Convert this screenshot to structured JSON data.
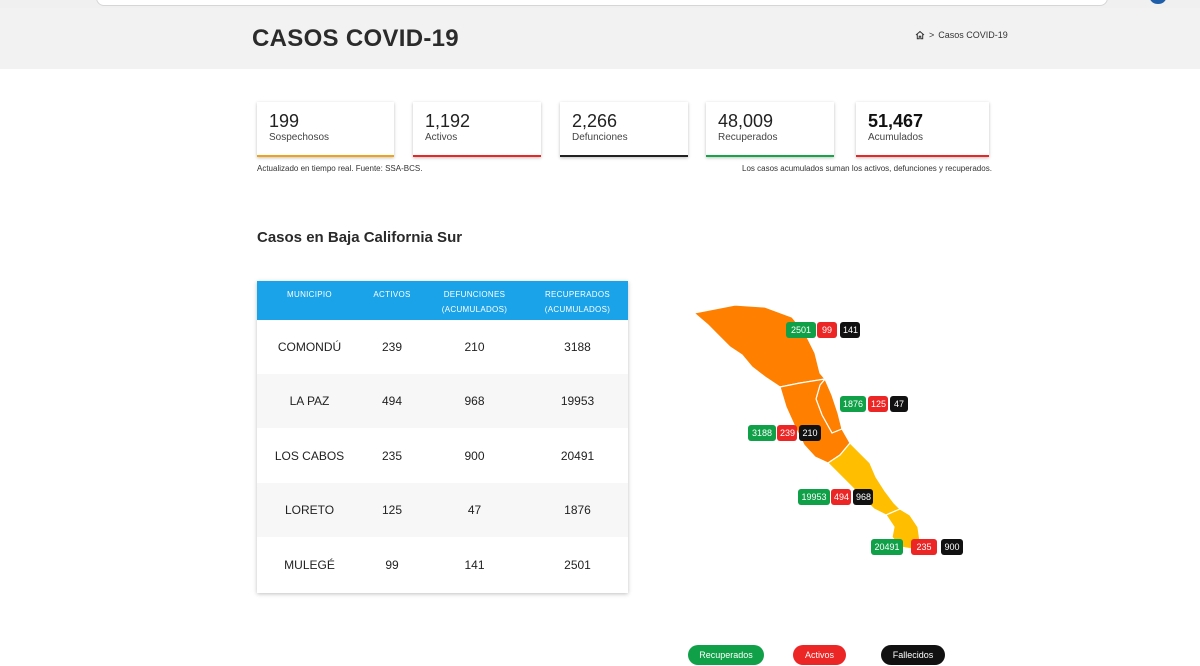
{
  "header": {
    "title": "CASOS COVID-19",
    "breadcrumb_sep": ">",
    "breadcrumb_current": "Casos COVID-19"
  },
  "stats": [
    {
      "value": "199",
      "label": "Sospechosos",
      "color": "#f0a21c"
    },
    {
      "value": "1,192",
      "label": "Activos",
      "color": "#ec2525"
    },
    {
      "value": "2,266",
      "label": "Defunciones",
      "color": "#222222"
    },
    {
      "value": "48,009",
      "label": "Recuperados",
      "color": "#17a647"
    },
    {
      "value": "51,467",
      "label": "Acumulados",
      "color": "#ec2525"
    }
  ],
  "notes": {
    "left": "Actualizado en tiempo real. Fuente: SSA-BCS.",
    "right": "Los casos acumulados suman los activos, defunciones y recuperados."
  },
  "section_title": "Casos en Baja California Sur",
  "table": {
    "headers": {
      "municipio": "MUNICIPIO",
      "activos": "ACTIVOS",
      "defunciones_1": "DEFUNCIONES",
      "defunciones_2": "(ACUMULADOS)",
      "recuperados_1": "RECUPERADOS",
      "recuperados_2": "(ACUMULADOS)"
    },
    "rows": [
      {
        "municipio": "COMONDÚ",
        "activos": "239",
        "defunciones": "210",
        "recuperados": "3188"
      },
      {
        "municipio": "LA PAZ",
        "activos": "494",
        "defunciones": "968",
        "recuperados": "19953"
      },
      {
        "municipio": "LOS CABOS",
        "activos": "235",
        "defunciones": "900",
        "recuperados": "20491"
      },
      {
        "municipio": "LORETO",
        "activos": "125",
        "defunciones": "47",
        "recuperados": "1876"
      },
      {
        "municipio": "MULEGÉ",
        "activos": "99",
        "defunciones": "141",
        "recuperados": "2501"
      }
    ]
  },
  "map_badges": {
    "mulege": {
      "recuperados": "2501",
      "activos": "99",
      "fallecidos": "141"
    },
    "loreto": {
      "recuperados": "1876",
      "activos": "125",
      "fallecidos": "47"
    },
    "comondu": {
      "recuperados": "3188",
      "activos": "239",
      "fallecidos": "210"
    },
    "lapaz": {
      "recuperados": "19953",
      "activos": "494",
      "fallecidos": "968"
    },
    "loscabos": {
      "recuperados": "20491",
      "activos": "235",
      "fallecidos": "900"
    }
  },
  "legend": {
    "recuperados": "Recuperados",
    "activos": "Activos",
    "fallecidos": "Fallecidos"
  },
  "colors": {
    "accent_blue": "#1aa3e8",
    "map_orange": "#ff7f00",
    "map_yellow": "#ffbe00",
    "green": "#0fa048",
    "red": "#ec2525",
    "black": "#111111"
  }
}
